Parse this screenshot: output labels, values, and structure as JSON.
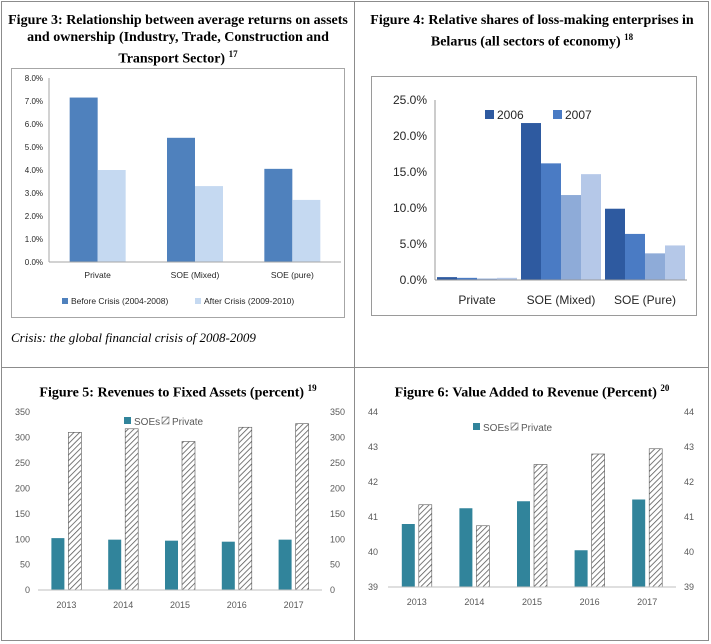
{
  "figures": {
    "fig3": {
      "title": "Figure 3: Relationship between average returns on assets and ownership (Industry, Trade, Construction and Transport Sector)",
      "footnote": "17"
    },
    "fig4": {
      "title": "Figure 4: Relative shares of loss-making enterprises in Belarus (all sectors of economy)",
      "footnote": "18"
    },
    "fig5": {
      "title": "Figure 5: Revenues to Fixed Assets (percent)",
      "footnote": "19"
    },
    "fig6": {
      "title": "Figure 6: Value Added to Revenue (Percent)",
      "footnote": "20"
    }
  },
  "note": "Crisis: the global financial crisis of 2008-2009",
  "chart_data": [
    {
      "id": "fig3",
      "type": "bar",
      "categories": [
        "Private",
        "SOE (Mixed)",
        "SOE (pure)"
      ],
      "series": [
        {
          "name": "Before Crisis (2004-2008)",
          "values": [
            7.15,
            5.4,
            4.05
          ],
          "color": "#4f81bd"
        },
        {
          "name": "After Crisis (2009-2010)",
          "values": [
            4.0,
            3.3,
            2.7
          ],
          "color": "#c5d9f1"
        }
      ],
      "ylim": [
        0,
        8
      ],
      "yticks": [
        "0.0%",
        "1.0%",
        "2.0%",
        "3.0%",
        "4.0%",
        "5.0%",
        "6.0%",
        "7.0%",
        "8.0%"
      ],
      "grid": false,
      "legend": "bottom"
    },
    {
      "id": "fig4",
      "type": "bar",
      "categories": [
        "Private",
        "SOE (Mixed)",
        "SOE (Pure)"
      ],
      "series": [
        {
          "name": "2006",
          "values": [
            0.4,
            21.8,
            9.9
          ],
          "color": "#2e5aa0"
        },
        {
          "name": "2007",
          "values": [
            0.3,
            16.2,
            6.4
          ],
          "color": "#4a7bc4"
        },
        {
          "name": "",
          "values": [
            0.2,
            11.8,
            3.7
          ],
          "color": "#8eabd8"
        },
        {
          "name": "",
          "values": [
            0.3,
            14.7,
            4.8
          ],
          "color": "#b5c8e8"
        }
      ],
      "ylim": [
        0,
        25
      ],
      "yticks": [
        "0.0%",
        "5.0%",
        "10.0%",
        "15.0%",
        "20.0%",
        "25.0%"
      ],
      "grid": false,
      "legend": "top-left"
    },
    {
      "id": "fig5",
      "type": "bar",
      "categories": [
        "2013",
        "2014",
        "2015",
        "2016",
        "2017"
      ],
      "series": [
        {
          "name": "SOEs",
          "values": [
            102,
            99,
            97,
            95,
            99
          ],
          "color": "#31849b"
        },
        {
          "name": "Private",
          "values": [
            310,
            317,
            292,
            320,
            327
          ],
          "color": "hatch"
        }
      ],
      "ylim": [
        0,
        350
      ],
      "yticks": [
        "0",
        "50",
        "100",
        "150",
        "200",
        "250",
        "300",
        "350"
      ],
      "grid": false,
      "legend": "top"
    },
    {
      "id": "fig6",
      "type": "bar",
      "categories": [
        "2013",
        "2014",
        "2015",
        "2016",
        "2017"
      ],
      "series": [
        {
          "name": "SOEs",
          "values": [
            40.8,
            41.25,
            41.45,
            40.05,
            41.5
          ],
          "color": "#31849b"
        },
        {
          "name": "Private",
          "values": [
            41.35,
            40.75,
            42.5,
            42.8,
            42.95
          ],
          "color": "hatch"
        }
      ],
      "ylim": [
        39,
        44
      ],
      "yticks": [
        "39",
        "40",
        "41",
        "42",
        "43",
        "44"
      ],
      "grid": false,
      "legend": "top"
    }
  ]
}
